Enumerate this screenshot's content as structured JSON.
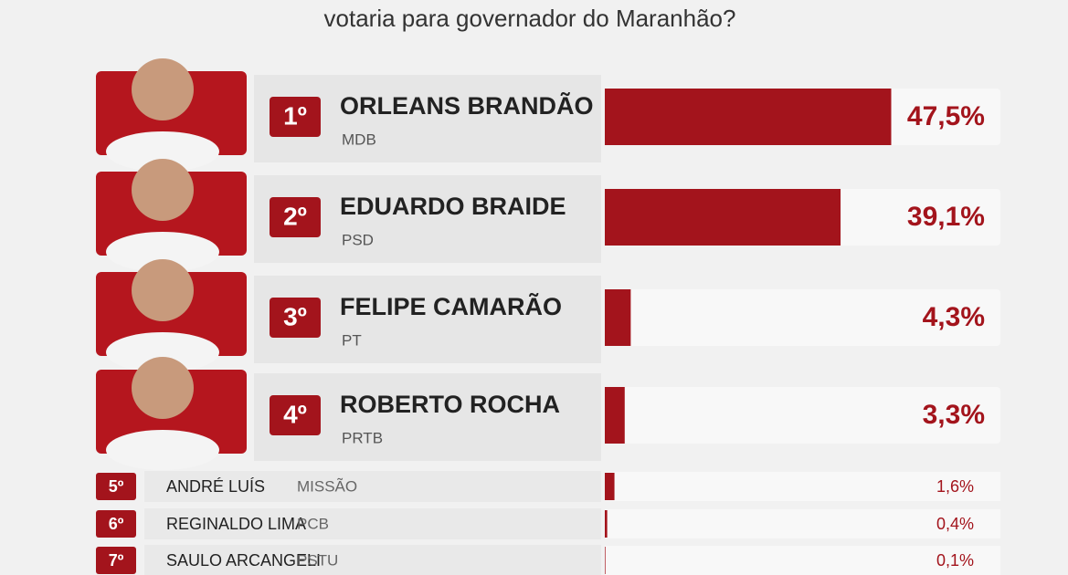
{
  "chart_data": {
    "type": "bar",
    "orientation": "horizontal",
    "title": "votaria para governador do Maranhão?",
    "ranks": [
      "1º",
      "2º",
      "3º",
      "4º",
      "5º",
      "6º",
      "7º"
    ],
    "categories": [
      "ORLEANS BRANDÃO",
      "EDUARDO BRAIDE",
      "FELIPE CAMARÃO",
      "ROBERTO ROCHA",
      "ANDRÉ LUÍS",
      "REGINALDO LIMA",
      "SAULO ARCANGELI"
    ],
    "parties": [
      "MDB",
      "PSD",
      "PT",
      "PRTB",
      "MISSÃO",
      "PCB",
      "PSTU"
    ],
    "values": [
      47.5,
      39.1,
      4.3,
      3.3,
      1.6,
      0.4,
      0.1
    ],
    "value_labels": [
      "47,5%",
      "39,1%",
      "4,3%",
      "3,3%",
      "1,6%",
      "0,4%",
      "0,1%"
    ],
    "color": "#a3141c"
  }
}
